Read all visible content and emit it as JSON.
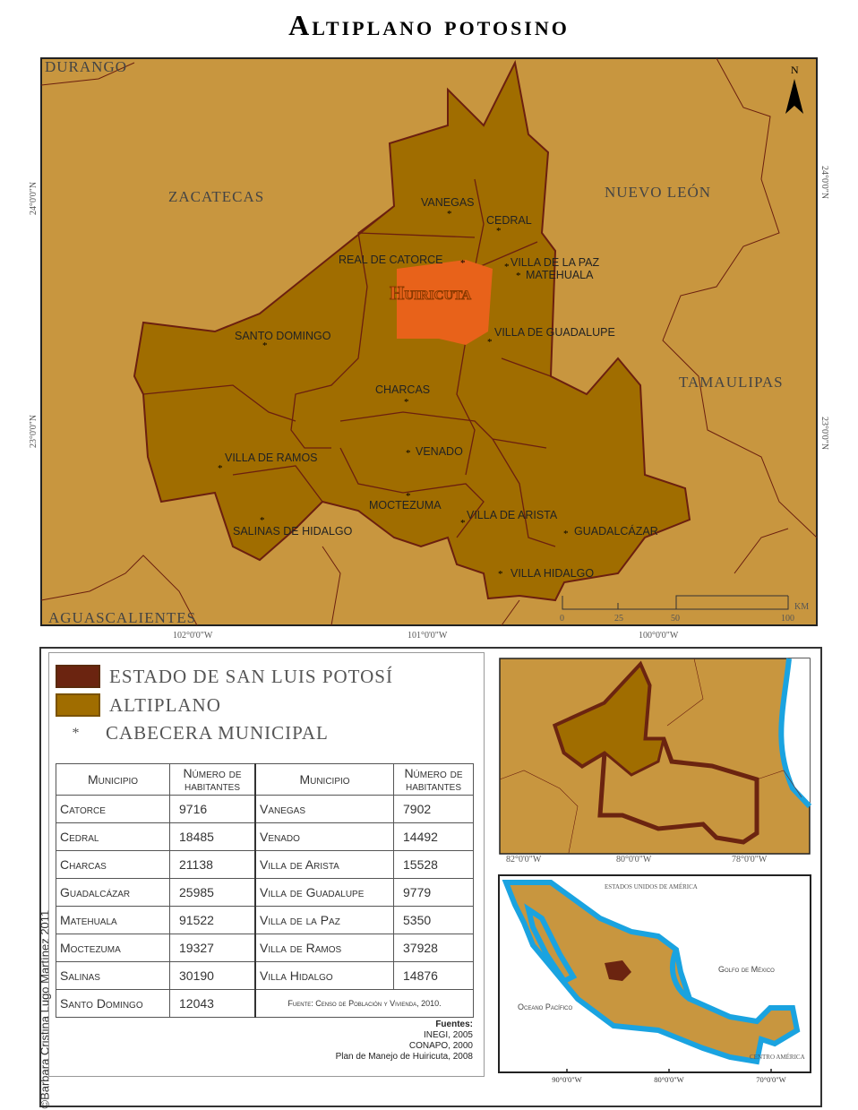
{
  "title": "Altiplano potosino",
  "credit": "©Barbara Cristina Lugo Martínez 2011",
  "colors": {
    "background_land": "#c8963f",
    "altiplano": "#a06d00",
    "border": "#6b1f0f",
    "huiricuta": "#e8621a",
    "state": "#6b2410",
    "water": "#1aa3e0"
  },
  "main_map": {
    "states": [
      "DURANGO",
      "ZACATECAS",
      "NUEVO LEÓN",
      "TAMAULIPAS",
      "AGUASCALIENTES"
    ],
    "area_label": "Huiricuta",
    "municipalities": [
      "VANEGAS",
      "CEDRAL",
      "REAL DE CATORCE",
      "VILLA DE LA PAZ",
      "MATEHUALA",
      "SANTO DOMINGO",
      "VILLA DE GUADALUPE",
      "CHARCAS",
      "VENADO",
      "VILLA DE RAMOS",
      "MOCTEZUMA",
      "VILLA DE ARISTA",
      "SALINAS DE HIDALGO",
      "GUADALCÁZAR",
      "VILLA HIDALGO"
    ],
    "north_arrow": "N",
    "lon_ticks": [
      "102°0'0\"W",
      "101°0'0\"W",
      "100°0'0\"W"
    ],
    "lat_ticks": [
      "24°0'0\"N",
      "23°0'0\"N"
    ],
    "scale": {
      "ticks": [
        "0",
        "25",
        "50",
        "100"
      ],
      "unit": "KM"
    }
  },
  "legend": {
    "items": [
      {
        "label": "ESTADO DE SAN LUIS POTOSÍ",
        "icon": "swatch-dark-red"
      },
      {
        "label": "ALTIPLANO",
        "icon": "swatch-ochre"
      },
      {
        "label": "CABECERA MUNICIPAL",
        "icon": "asterisk"
      }
    ]
  },
  "table": {
    "headers": [
      "Municipio",
      "Número de habitantes",
      "Municipio",
      "Número de habitantes"
    ],
    "rows": [
      [
        "Catorce",
        "9716",
        "Vanegas",
        "7902"
      ],
      [
        "Cedral",
        "18485",
        "Venado",
        "14492"
      ],
      [
        "Charcas",
        "21138",
        "Villa de Arista",
        "15528"
      ],
      [
        "Guadalcázar",
        "25985",
        "Villa de Guadalupe",
        "9779"
      ],
      [
        "Matehuala",
        "91522",
        "Villa de la Paz",
        "5350"
      ],
      [
        "Moctezuma",
        "19327",
        "Villa de Ramos",
        "37928"
      ],
      [
        "Salinas",
        "30190",
        "Villa Hidalgo",
        "14876"
      ]
    ],
    "last_row": [
      "Santo Domingo",
      "12043"
    ],
    "source": "Fuente: Censo de Población y Vivienda, 2010."
  },
  "sources": {
    "heading": "Fuentes:",
    "lines": [
      "INEGI, 2005",
      "CONAPO, 2000",
      "Plan de Manejo de Huiricuta, 2008"
    ]
  },
  "inset_state": {
    "lon_ticks": [
      "82°0'0\"W",
      "80°0'0\"W",
      "78°0'0\"W"
    ]
  },
  "inset_mexico": {
    "labels": [
      "ESTADOS UNIDOS DE AMÉRICA",
      "Golfo de México",
      "Oceano Pacífico",
      "CENTRO AMÉRICA"
    ],
    "lon_ticks": [
      "90°0'0\"W",
      "80°0'0\"W",
      "70°0'0\"W"
    ]
  }
}
